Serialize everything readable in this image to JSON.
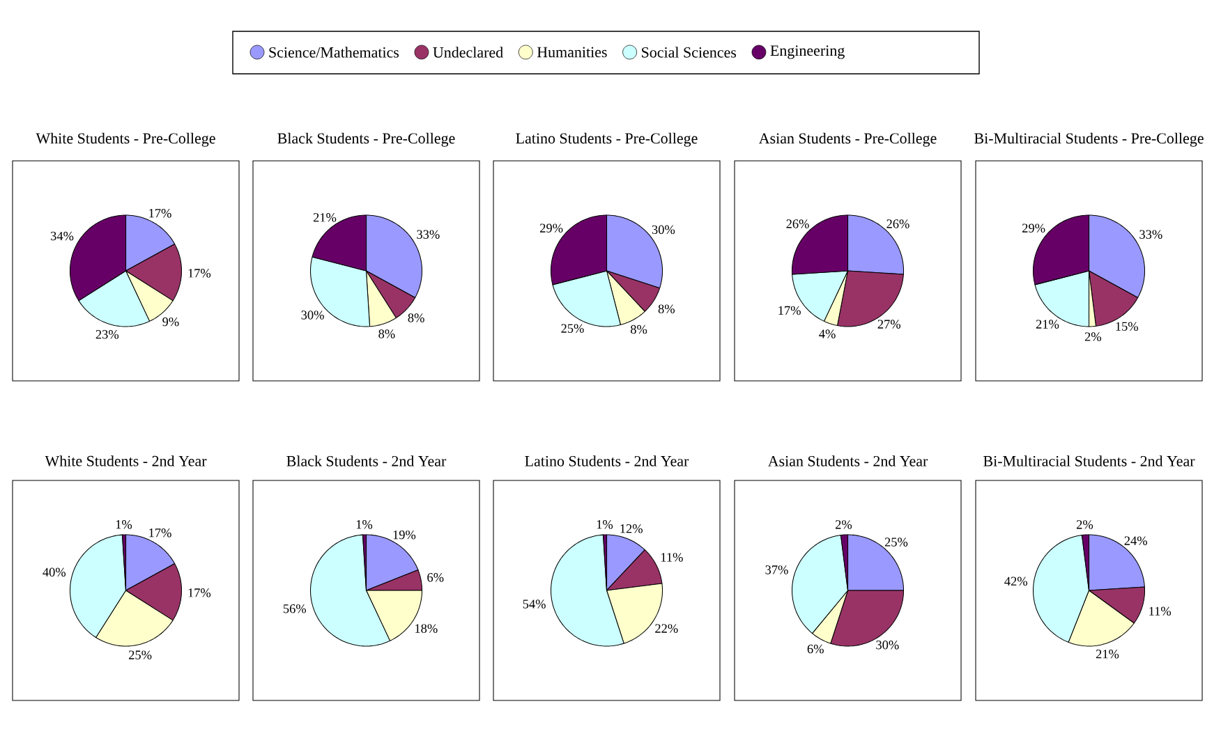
{
  "chart_data": [
    {
      "type": "pie",
      "title": "White Students - Pre-College",
      "legend": "top",
      "categories": [
        "Science/Mathematics",
        "Undeclared",
        "Humanities",
        "Social Sciences",
        "Engineering"
      ],
      "colors": [
        "#9999ff",
        "#993366",
        "#ffffcc",
        "#ccffff",
        "#660066"
      ],
      "values": [
        17,
        17,
        9,
        23,
        34
      ],
      "value_labels": [
        "17%",
        "17%",
        "9%",
        "23%",
        "34%"
      ]
    },
    {
      "type": "pie",
      "title": "Black Students - Pre-College",
      "colors": [
        "#9999ff",
        "#993366",
        "#ffffcc",
        "#ccffff",
        "#660066"
      ],
      "values": [
        33,
        8,
        8,
        30,
        21
      ],
      "value_labels": [
        "33%",
        "8%",
        "8%",
        "30%",
        "21%"
      ]
    },
    {
      "type": "pie",
      "title": "Latino Students - Pre-College",
      "colors": [
        "#9999ff",
        "#993366",
        "#ffffcc",
        "#ccffff",
        "#660066"
      ],
      "values": [
        30,
        8,
        8,
        25,
        29
      ],
      "value_labels": [
        "30%",
        "8%",
        "8%",
        "25%",
        "29%"
      ]
    },
    {
      "type": "pie",
      "title": "Asian Students - Pre-College",
      "colors": [
        "#9999ff",
        "#993366",
        "#ffffcc",
        "#ccffff",
        "#660066"
      ],
      "values": [
        26,
        27,
        4,
        17,
        26
      ],
      "value_labels": [
        "26%",
        "27%",
        "4%",
        "17%",
        "26%"
      ]
    },
    {
      "type": "pie",
      "title": "Bi-Multiracial Students - Pre-College",
      "colors": [
        "#9999ff",
        "#993366",
        "#ffffcc",
        "#ccffff",
        "#660066"
      ],
      "values": [
        33,
        15,
        2,
        21,
        29
      ],
      "value_labels": [
        "33%",
        "15%",
        "2%",
        "21%",
        "29%"
      ]
    },
    {
      "type": "pie",
      "title": "White Students - 2nd Year",
      "colors": [
        "#9999ff",
        "#993366",
        "#ffffcc",
        "#ccffff",
        "#660066"
      ],
      "values": [
        17,
        17,
        25,
        40,
        1
      ],
      "value_labels": [
        "17%",
        "17%",
        "25%",
        "40%",
        "1%"
      ]
    },
    {
      "type": "pie",
      "title": "Black Students - 2nd Year",
      "colors": [
        "#9999ff",
        "#993366",
        "#ffffcc",
        "#ccffff",
        "#660066"
      ],
      "values": [
        19,
        6,
        18,
        56,
        1
      ],
      "value_labels": [
        "19%",
        "6%",
        "18%",
        "56%",
        "1%"
      ]
    },
    {
      "type": "pie",
      "title": "Latino Students - 2nd Year",
      "colors": [
        "#9999ff",
        "#993366",
        "#ffffcc",
        "#ccffff",
        "#660066"
      ],
      "values": [
        12,
        11,
        22,
        54,
        1
      ],
      "value_labels": [
        "12%",
        "11%",
        "22%",
        "54%",
        "1%"
      ]
    },
    {
      "type": "pie",
      "title": "Asian Students - 2nd Year",
      "colors": [
        "#9999ff",
        "#993366",
        "#ffffcc",
        "#ccffff",
        "#660066"
      ],
      "values": [
        25,
        30,
        6,
        37,
        2
      ],
      "value_labels": [
        "25%",
        "30%",
        "6%",
        "37%",
        "2%"
      ]
    },
    {
      "type": "pie",
      "title": "Bi-Multiracial Students - 2nd Year",
      "colors": [
        "#9999ff",
        "#993366",
        "#ffffcc",
        "#ccffff",
        "#660066"
      ],
      "values": [
        24,
        11,
        21,
        42,
        2
      ],
      "value_labels": [
        "24%",
        "11%",
        "21%",
        "42%",
        "2%"
      ]
    }
  ]
}
